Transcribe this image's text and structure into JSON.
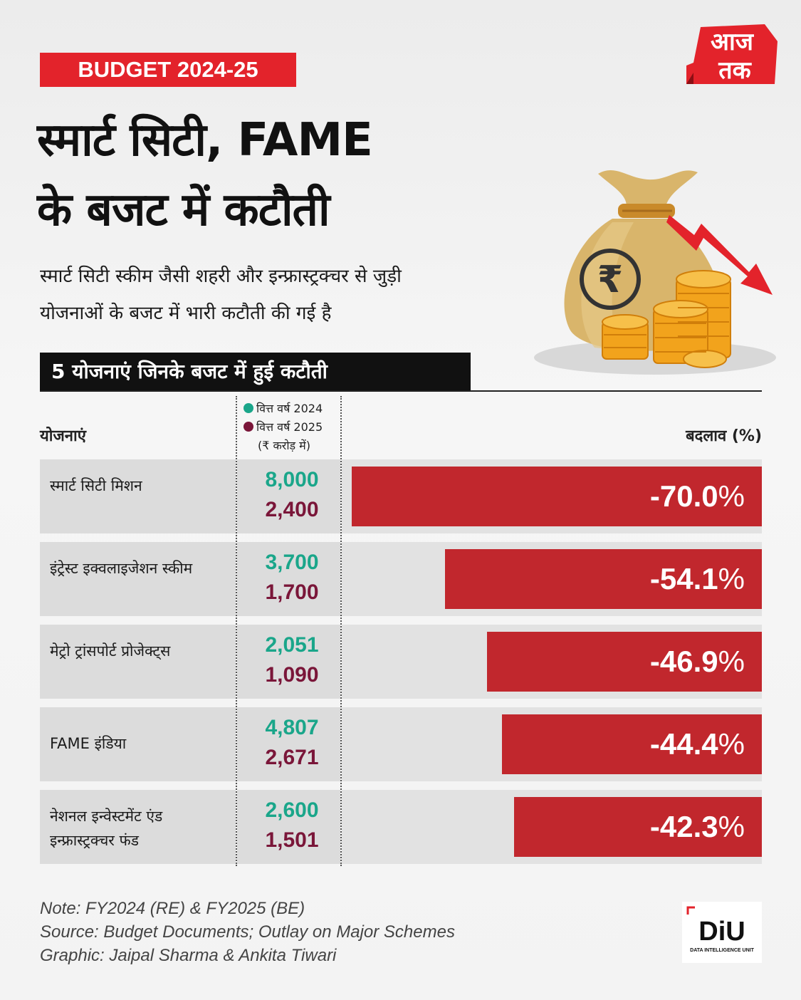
{
  "tag": "BUDGET 2024-25",
  "title_line1": "स्मार्ट सिटी, FAME",
  "title_line2": "के बजट में कटौती",
  "subtitle_line1": "स्मार्ट सिटी स्कीम जैसी शहरी और इन्फ्रास्ट्रक्चर से जुड़ी",
  "subtitle_line2": "योजनाओं के बजट में भारी कटौती की गई है",
  "logo_text_top": "आज",
  "logo_text_bottom": "तक",
  "section_title": "5 योजनाएं जिनके बजट में हुई कटौती",
  "columns": {
    "schemes": "योजनाएं",
    "legend_2024": "वित्त वर्ष 2024",
    "legend_2025": "वित्त वर्ष 2025",
    "legend_unit": "(₹ करोड़ में)",
    "change": "बदलाव (%)"
  },
  "colors": {
    "accent": "#e3232b",
    "bar": "#c1272d",
    "fy2024": "#1aa68a",
    "fy2025": "#7a1639"
  },
  "chart_data": {
    "type": "bar",
    "orientation": "horizontal",
    "categories": [
      "स्मार्ट सिटी मिशन",
      "इंट्रेस्ट इक्वलाइजेशन स्कीम",
      "मेट्रो ट्रांसपोर्ट प्रोजेक्ट्स",
      "FAME इंडिया",
      "नेशनल इन्वेस्टमेंट एंड इन्फ्रास्ट्रक्चर फंड"
    ],
    "fy2024": [
      "8,000",
      "3,700",
      "2,051",
      "4,807",
      "2,600"
    ],
    "fy2025": [
      "2,400",
      "1,700",
      "1,090",
      "2,671",
      "1,501"
    ],
    "values": [
      -70.0,
      -54.1,
      -46.9,
      -44.4,
      -42.3
    ],
    "value_labels": [
      "-70.0",
      "-54.1",
      "-46.9",
      "-44.4",
      "-42.3"
    ],
    "percent_sign": "%",
    "xlim": [
      -70,
      0
    ],
    "grid": false,
    "legend": "top-center"
  },
  "notes": {
    "note": "Note: FY2024 (RE) & FY2025 (BE)",
    "source": "Source: Budget Documents; Outlay on Major Schemes",
    "graphic": "Graphic: Jaipal Sharma & Ankita Tiwari"
  },
  "diu": {
    "main": "DiU",
    "sub": "DATA INTELLIGENCE UNIT"
  }
}
